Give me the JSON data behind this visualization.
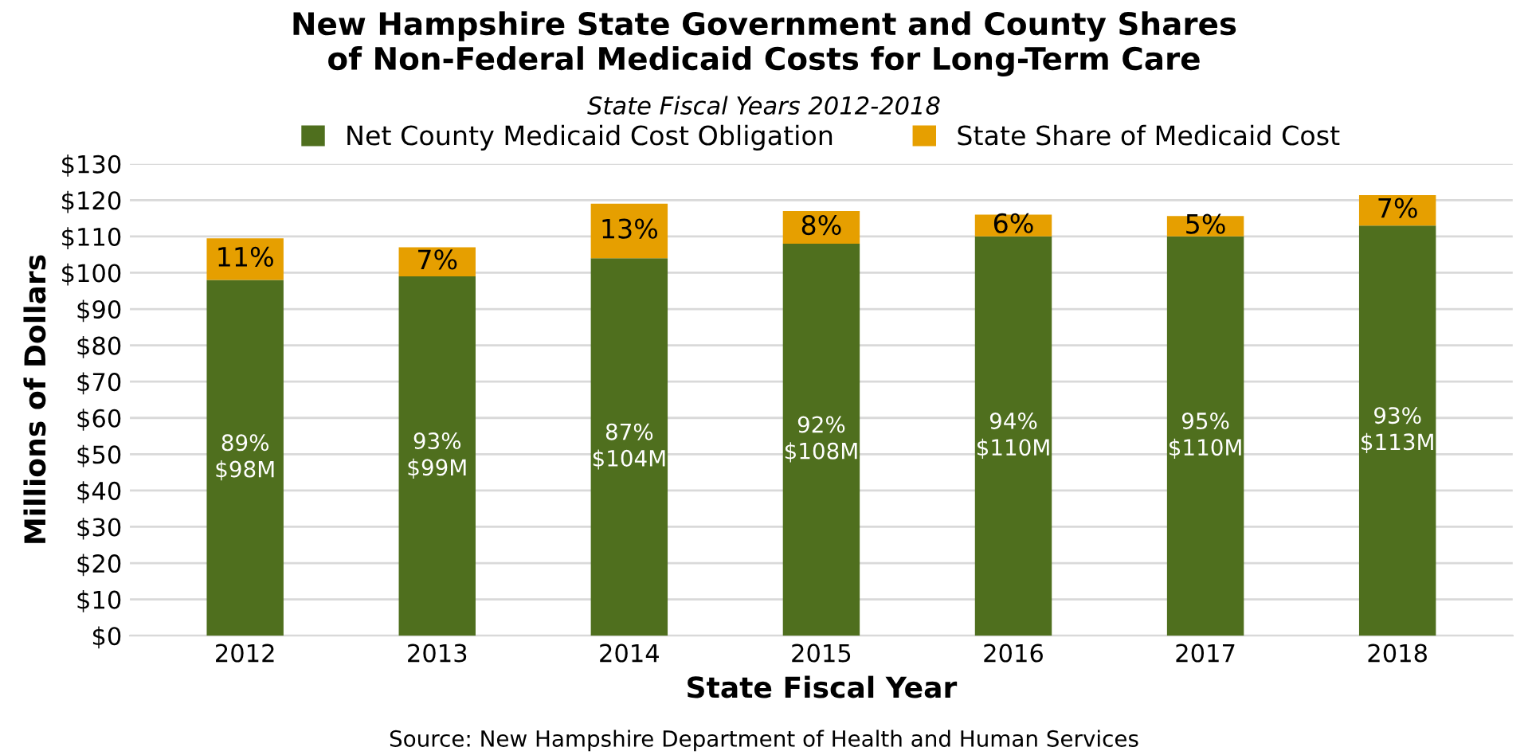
{
  "chart_data": {
    "type": "bar",
    "title": "New Hampshire State Government and County Shares\nof Non-Federal Medicaid Costs for Long-Term Care",
    "subtitle": "State Fiscal Years 2012-2018",
    "xlabel": "State Fiscal Year",
    "ylabel": "Millions of Dollars",
    "categories": [
      "2012",
      "2013",
      "2014",
      "2015",
      "2016",
      "2017",
      "2018"
    ],
    "stacked": true,
    "series": [
      {
        "name": "Net County Medicaid Cost Obligation",
        "color": "#4f6f1e",
        "values": [
          98,
          99,
          104,
          108,
          110,
          110,
          113
        ]
      },
      {
        "name": "State Share of Medicaid Cost",
        "color": "#e69f00",
        "values": [
          11.5,
          8,
          15,
          9,
          6,
          5.6,
          8.4
        ]
      }
    ],
    "ylim": [
      0,
      130
    ],
    "yticks": [
      {
        "value": 0,
        "label": "$0"
      },
      {
        "value": 10,
        "label": "$10"
      },
      {
        "value": 20,
        "label": "$20"
      },
      {
        "value": 30,
        "label": "$30"
      },
      {
        "value": 40,
        "label": "$40"
      },
      {
        "value": 50,
        "label": "$50"
      },
      {
        "value": 60,
        "label": "$60"
      },
      {
        "value": 70,
        "label": "$70"
      },
      {
        "value": 80,
        "label": "$80"
      },
      {
        "value": 90,
        "label": "$90"
      },
      {
        "value": 100,
        "label": "$100"
      },
      {
        "value": 110,
        "label": "$110"
      },
      {
        "value": 120,
        "label": "$120"
      },
      {
        "value": 130,
        "label": "$130"
      }
    ],
    "grid": "y",
    "legend": "top",
    "annotations": [
      "89%\n$98M",
      "93%\n$99M",
      "87%\n$104M",
      "92%\n$108M",
      "94%\n$110M",
      "95%\n$110M",
      "93%\n$113M",
      "11%",
      "7%",
      "13%",
      "8%",
      "6%",
      "5%",
      "7%",
      "Source: New Hampshire Department of Health and Human Services"
    ]
  }
}
